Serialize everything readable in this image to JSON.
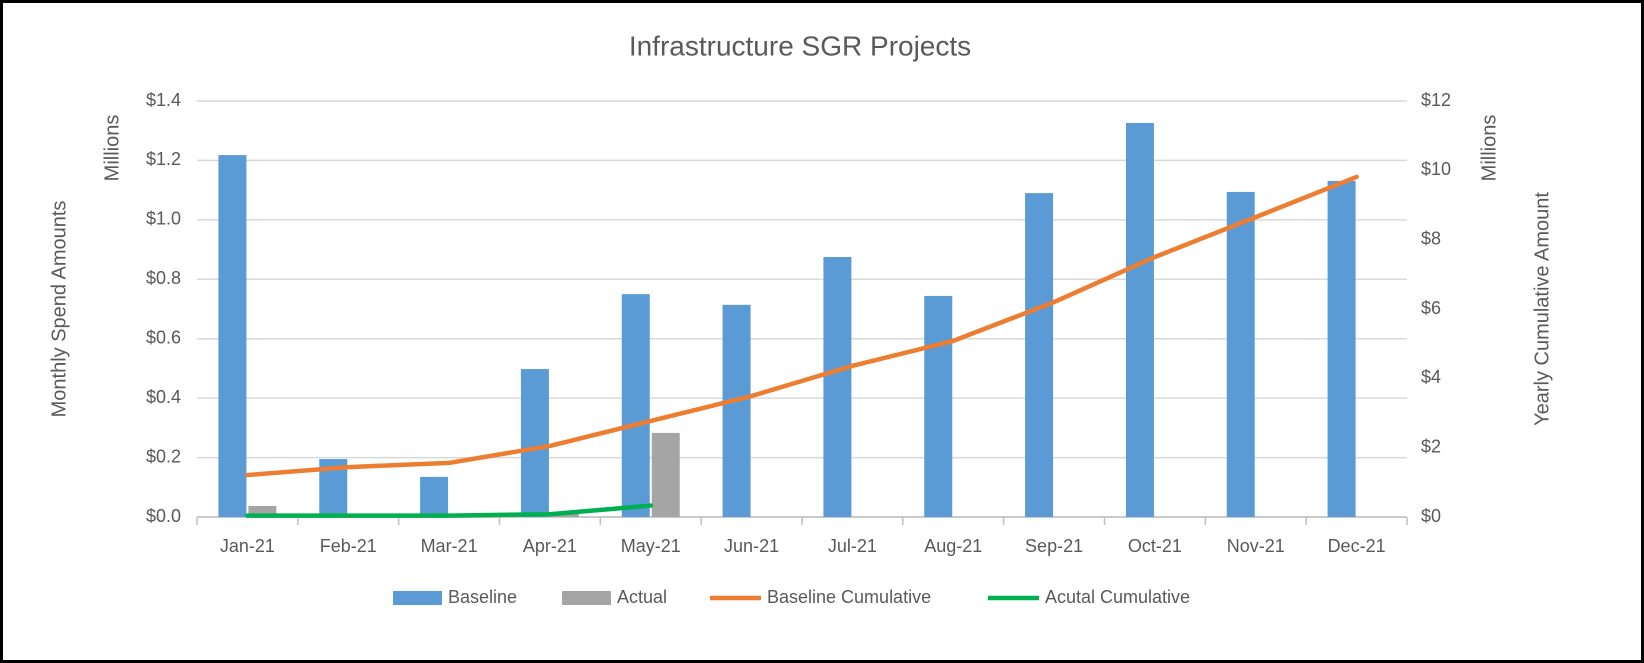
{
  "chart_data": {
    "type": "combo",
    "title": "Infrastructure SGR Projects",
    "y_label": "Monthly Spend Amounts",
    "y_unit_label": "Millions",
    "y2_label": "Yearly Cumulative Amount",
    "y2_unit_label": "Millions",
    "categories": [
      "Jan-21",
      "Feb-21",
      "Mar-21",
      "Apr-21",
      "May-21",
      "Jun-21",
      "Jul-21",
      "Aug-21",
      "Sep-21",
      "Oct-21",
      "Nov-21",
      "Dec-21"
    ],
    "series": [
      {
        "name": "Baseline",
        "type": "bar",
        "color": "#5b9bd5",
        "values": [
          1.218,
          0.195,
          0.135,
          0.498,
          0.75,
          0.714,
          0.875,
          0.744,
          1.09,
          1.326,
          1.094,
          1.131
        ]
      },
      {
        "name": "Actual",
        "type": "bar",
        "color": "#a5a5a5",
        "values": [
          0.037,
          0,
          0,
          0.01,
          0.283,
          null,
          null,
          null,
          null,
          null,
          null,
          null
        ]
      },
      {
        "name": "Baseline Cumulative",
        "type": "line",
        "axis": "y2",
        "color": "#ed7d31",
        "values": [
          1.21,
          1.44,
          1.56,
          2.05,
          2.77,
          3.49,
          4.36,
          5.08,
          6.2,
          7.5,
          8.65,
          9.81
        ]
      },
      {
        "name": "Acutal Cumulative",
        "type": "line",
        "axis": "y2",
        "color": "#00b050",
        "values": [
          0.04,
          0.04,
          0.04,
          0.08,
          0.33,
          null,
          null,
          null,
          null,
          null,
          null,
          null
        ]
      }
    ],
    "ylim": [
      0,
      1.4
    ],
    "yticks": [
      {
        "value": 0,
        "label": "$0.0"
      },
      {
        "value": 0.2,
        "label": "$0.2"
      },
      {
        "value": 0.4,
        "label": "$0.4"
      },
      {
        "value": 0.6,
        "label": "$0.6"
      },
      {
        "value": 0.8,
        "label": "$0.8"
      },
      {
        "value": 1.0,
        "label": "$1.0"
      },
      {
        "value": 1.2,
        "label": "$1.2"
      },
      {
        "value": 1.4,
        "label": "$1.4"
      }
    ],
    "y2lim": [
      0,
      12
    ],
    "y2ticks": [
      {
        "value": 0,
        "label": "$0"
      },
      {
        "value": 2,
        "label": "$2"
      },
      {
        "value": 4,
        "label": "$4"
      },
      {
        "value": 6,
        "label": "$6"
      },
      {
        "value": 8,
        "label": "$8"
      },
      {
        "value": 10,
        "label": "$10"
      },
      {
        "value": 12,
        "label": "$12"
      }
    ],
    "grid": true,
    "legend": "bottom"
  }
}
